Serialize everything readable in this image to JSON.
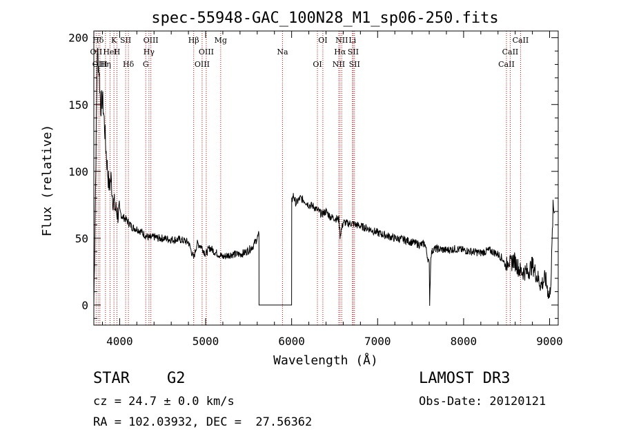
{
  "chart_data": {
    "type": "line",
    "title": "spec-55948-GAC_100N28_M1_sp06-250.fits",
    "xlabel": "Wavelength (Å)",
    "ylabel": "Flux (relative)",
    "xlim": [
      3700,
      9100
    ],
    "ylim": [
      -15,
      205
    ],
    "x_ticks": [
      4000,
      5000,
      6000,
      7000,
      8000,
      9000
    ],
    "y_ticks": [
      0,
      50,
      100,
      150,
      200
    ],
    "x_tick_labels": [
      "4000",
      "5000",
      "6000",
      "7000",
      "8000",
      "9000"
    ],
    "y_tick_labels": [
      "0",
      "50",
      "100",
      "150",
      "200"
    ],
    "series": [
      {
        "x": [
          3700,
          3720,
          3740,
          3760,
          3780,
          3800,
          3820,
          3840,
          3860,
          3880,
          3900,
          3920,
          3950,
          3980,
          4000,
          4030,
          4060,
          4100,
          4150,
          4200,
          4250,
          4300,
          4350,
          4400,
          4450,
          4500,
          4600,
          4700,
          4800,
          4860,
          4900,
          4950,
          5000,
          5050,
          5100,
          5150,
          5200,
          5250,
          5300,
          5350,
          5400,
          5450,
          5500,
          5550,
          5600,
          5620,
          5621,
          6000,
          6001,
          6020,
          6050,
          6100,
          6150,
          6200,
          6250,
          6300,
          6350,
          6400,
          6450,
          6500,
          6550,
          6563,
          6600,
          6650,
          6700,
          6750,
          6800,
          6900,
          7000,
          7100,
          7200,
          7300,
          7400,
          7500,
          7550,
          7600,
          7605,
          7620,
          7650,
          7700,
          7800,
          7900,
          8000,
          8100,
          8200,
          8300,
          8400,
          8450,
          8498,
          8520,
          8542,
          8580,
          8620,
          8662,
          8700,
          8750,
          8800,
          8850,
          8900,
          8950,
          9000,
          9020,
          9040,
          9060
        ],
        "y": [
          1,
          90,
          190,
          176,
          148,
          155,
          138,
          118,
          100,
          88,
          95,
          80,
          72,
          68,
          70,
          66,
          65,
          62,
          58,
          57,
          55,
          52,
          50,
          51,
          50,
          50,
          49,
          49,
          47,
          35,
          46,
          44,
          38,
          43,
          40,
          38,
          36,
          37,
          38,
          38,
          38,
          39,
          41,
          44,
          50,
          53,
          0,
          0,
          78,
          82,
          76,
          80,
          78,
          75,
          74,
          71,
          68,
          70,
          66,
          65,
          64,
          52,
          62,
          61,
          61,
          60,
          59,
          57,
          54,
          52,
          50,
          49,
          47,
          45,
          46,
          30,
          2,
          38,
          42,
          42,
          41,
          42,
          41,
          40,
          39,
          41,
          38,
          35,
          28,
          36,
          30,
          34,
          30,
          25,
          25,
          25,
          30,
          22,
          15,
          20,
          5,
          25,
          72,
          70
        ]
      }
    ],
    "lines": [
      {
        "label": "Hδ",
        "wavelength": 3750
      },
      {
        "label": "OII",
        "wavelength": 3727
      },
      {
        "label": "OIII",
        "wavelength": 3770
      },
      {
        "label": "K",
        "wavelength": 3934
      },
      {
        "label": "HeI",
        "wavelength": 3889
      },
      {
        "label": "Hη",
        "wavelength": 3835
      },
      {
        "label": "SII",
        "wavelength": 4070
      },
      {
        "label": "H",
        "wavelength": 3969
      },
      {
        "label": "Hδ",
        "wavelength": 4102
      },
      {
        "label": "OIII",
        "wavelength": 4363
      },
      {
        "label": "Hγ",
        "wavelength": 4341
      },
      {
        "label": "G",
        "wavelength": 4304
      },
      {
        "label": "Hβ",
        "wavelength": 4861
      },
      {
        "label": "OIII",
        "wavelength": 5007
      },
      {
        "label": "OIII",
        "wavelength": 4959
      },
      {
        "label": "Mg",
        "wavelength": 5175
      },
      {
        "label": "Na",
        "wavelength": 5894
      },
      {
        "label": "OI",
        "wavelength": 6300
      },
      {
        "label": "OI",
        "wavelength": 6363
      },
      {
        "label": "Hα",
        "wavelength": 6563
      },
      {
        "label": "NII",
        "wavelength": 6548
      },
      {
        "label": "NII",
        "wavelength": 6583
      },
      {
        "label": "SII",
        "wavelength": 6716
      },
      {
        "label": "SII",
        "wavelength": 6731
      },
      {
        "label": "Li",
        "wavelength": 6707
      },
      {
        "label": "CaII",
        "wavelength": 8542
      },
      {
        "label": "CaII",
        "wavelength": 8498
      },
      {
        "label": "CaII",
        "wavelength": 8662
      }
    ]
  },
  "info": {
    "object_class": "STAR",
    "subclass": "G2",
    "survey": "LAMOST DR3",
    "redshift": "cz = 24.7 ± 0.0 km/s",
    "obs_date": "Obs-Date: 20120121",
    "coordinates": "RA = 102.03932, DEC =  27.56362"
  },
  "colors": {
    "spectrum": "#000000",
    "line_markers": "#cc0000",
    "axes": "#000000"
  }
}
